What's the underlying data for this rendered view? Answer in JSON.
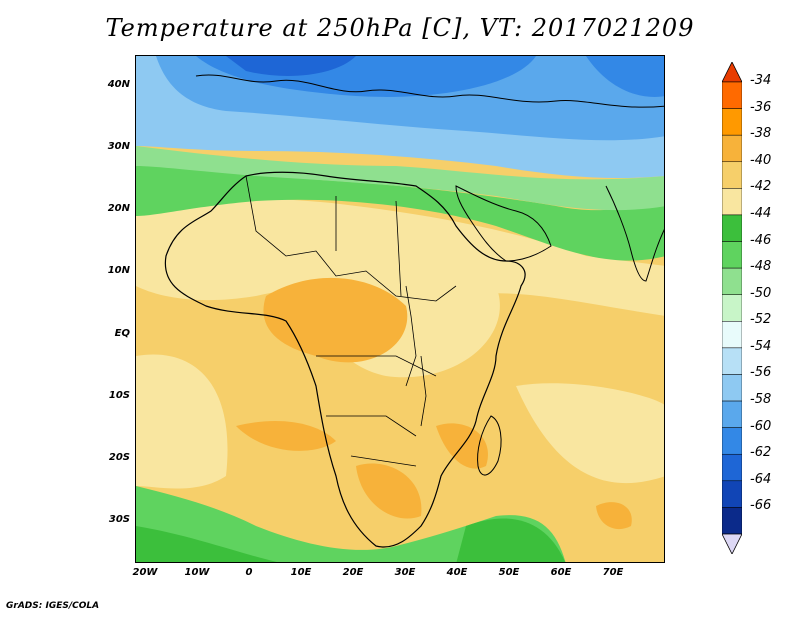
{
  "title": "Temperature at 250hPa [C], VT: 2017021209",
  "credit": "GrADS: IGES/COLA",
  "lat_labels": [
    "40N",
    "30N",
    "20N",
    "10N",
    "EQ",
    "10S",
    "20S",
    "30S"
  ],
  "lon_labels": [
    "20W",
    "10W",
    "0",
    "10E",
    "20E",
    "30E",
    "40E",
    "50E",
    "60E",
    "70E"
  ],
  "colorbar": {
    "labels": [
      "-34",
      "-36",
      "-38",
      "-40",
      "-42",
      "-44",
      "-46",
      "-48",
      "-50",
      "-52",
      "-54",
      "-56",
      "-58",
      "-60",
      "-62",
      "-64",
      "-66"
    ],
    "colors_top_to_bottom": [
      "#e83c00",
      "#ff6a00",
      "#ff9900",
      "#f7b23a",
      "#f6cf6a",
      "#f9e6a0",
      "#3cbf3c",
      "#5fd35f",
      "#8fe08f",
      "#c8f5c8",
      "#e8fbfb",
      "#b7e0f6",
      "#8ec9f2",
      "#5aa8ec",
      "#3388e6",
      "#1e66d6",
      "#1145b6",
      "#0b2a8a",
      "#0a1a6a"
    ],
    "triangle_top_color": "#e83c00",
    "triangle_bottom_color": "#ddd8f5"
  },
  "colors": {
    "ocean_warm": "#f6cf6a",
    "land_warm": "#f9e6a0",
    "hot_spots": "#f7b23a",
    "band_green": "#5fd35f",
    "band_light_green": "#8fe08f",
    "cold_north": "#5aa8ec",
    "very_cold_north": "#3388e6",
    "coastline": "#000000"
  }
}
